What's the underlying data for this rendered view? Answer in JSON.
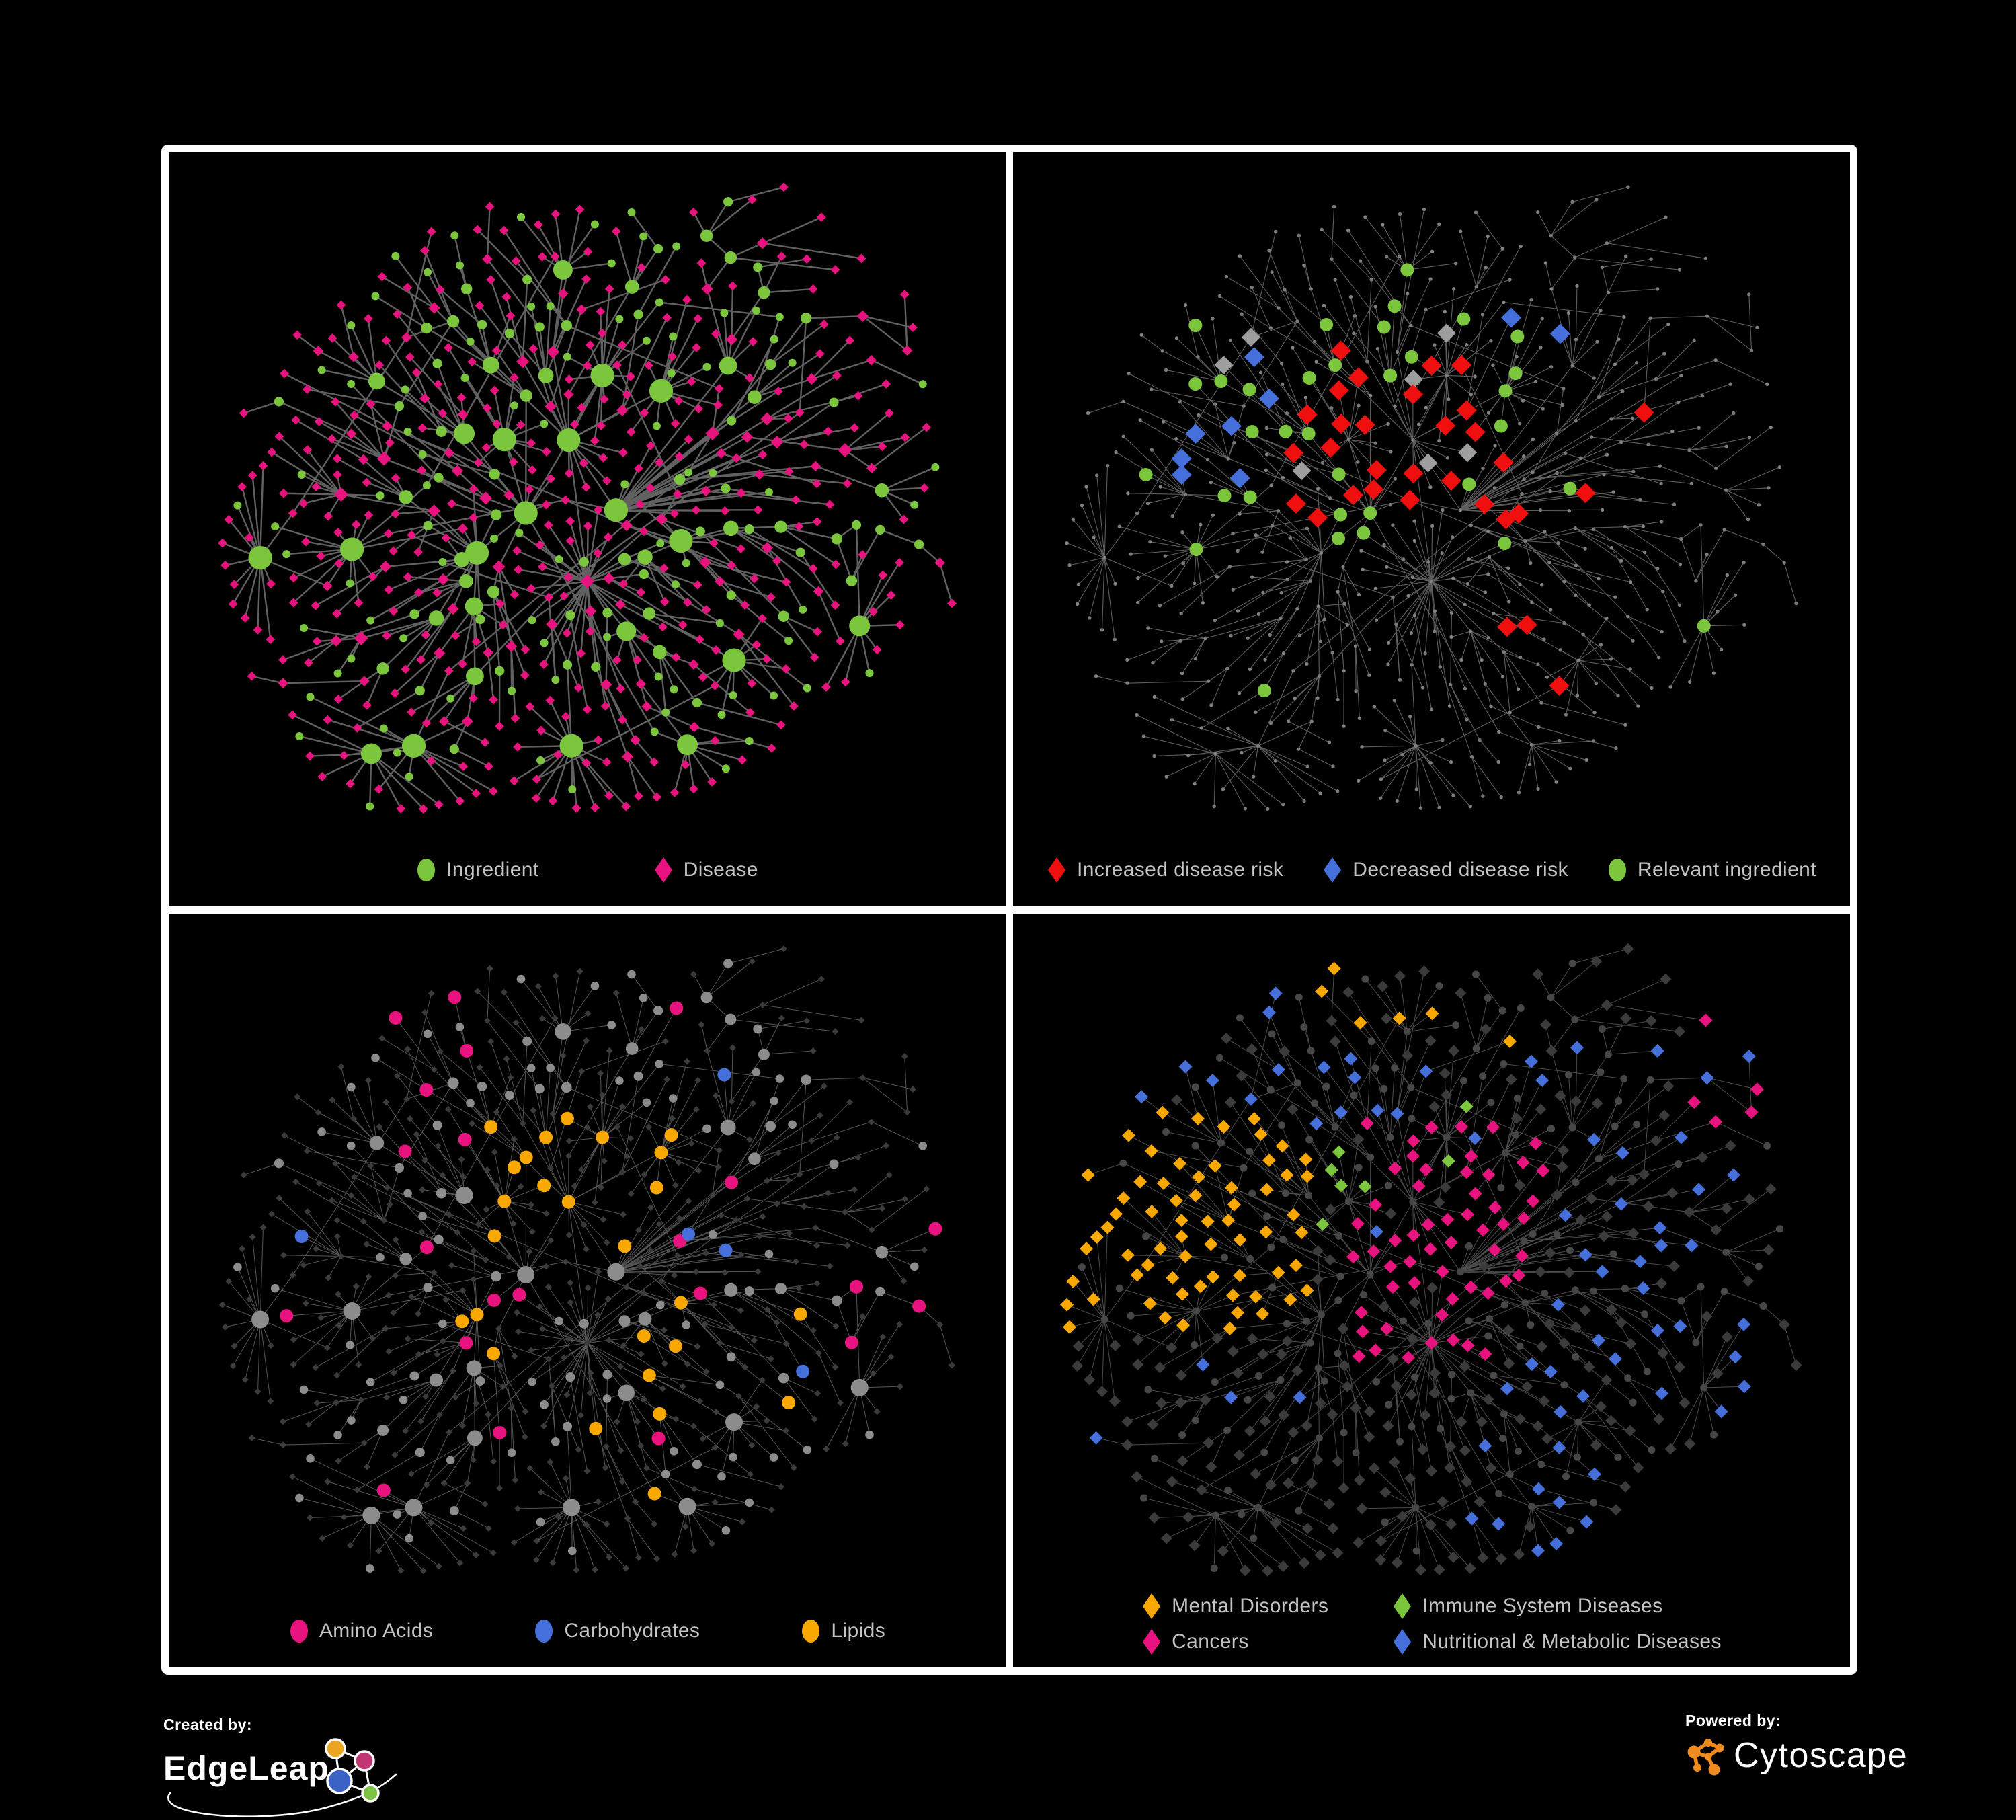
{
  "colors": {
    "background": "#000000",
    "frame": "#FFFFFF",
    "legend_text": "#C3C3C3",
    "green": "#7CC63D",
    "magenta": "#E8137F",
    "red": "#F00F0F",
    "blue": "#4570DB",
    "orange": "#F8A800",
    "gray_node": "#8C8C8C",
    "gray_diamond": "#9E9E9E",
    "dark_diamond": "#3B3B3B",
    "tiny_dot": "#7E7E7E",
    "edgeleap_orange": "#EBA51F",
    "edgeleap_pink": "#C13572",
    "edgeleap_blue": "#3B63C4",
    "edgeleap_green": "#7DC242",
    "cytoscape_orange": "#EF8B1F"
  },
  "panels": [
    {
      "id": "ingredient-disease",
      "legend": [
        {
          "shape": "circle",
          "color": "green",
          "label": "Ingredient"
        },
        {
          "shape": "diamond",
          "color": "magenta",
          "label": "Disease"
        }
      ]
    },
    {
      "id": "disease-risk",
      "legend": [
        {
          "shape": "diamond",
          "color": "red",
          "label": "Increased disease risk"
        },
        {
          "shape": "diamond",
          "color": "blue",
          "label": "Decreased disease risk"
        },
        {
          "shape": "circle",
          "color": "green",
          "label": "Relevant ingredient"
        }
      ]
    },
    {
      "id": "nutrients",
      "legend": [
        {
          "shape": "circle",
          "color": "magenta",
          "label": "Amino Acids"
        },
        {
          "shape": "circle",
          "color": "blue",
          "label": "Carbohydrates"
        },
        {
          "shape": "circle",
          "color": "orange",
          "label": "Lipids"
        }
      ]
    },
    {
      "id": "disease-classes",
      "legend": [
        {
          "shape": "diamond",
          "color": "orange",
          "label": "Mental Disorders"
        },
        {
          "shape": "diamond",
          "color": "green",
          "label": "Immune System Diseases"
        },
        {
          "shape": "diamond",
          "color": "magenta",
          "label": "Cancers"
        },
        {
          "shape": "diamond",
          "color": "blue",
          "label": "Nutritional & Metabolic Diseases"
        }
      ]
    }
  ],
  "footer": {
    "created_by_label": "Created by:",
    "created_by_name": "EdgeLeap",
    "powered_by_label": "Powered by:",
    "powered_by_name": "Cytoscape"
  },
  "network": {
    "type": "network",
    "seed": 11,
    "base_nodes": 430,
    "star_hubs": 14,
    "cross_links": 14,
    "layout": "force-directed, same topology rendered in all four panels"
  }
}
